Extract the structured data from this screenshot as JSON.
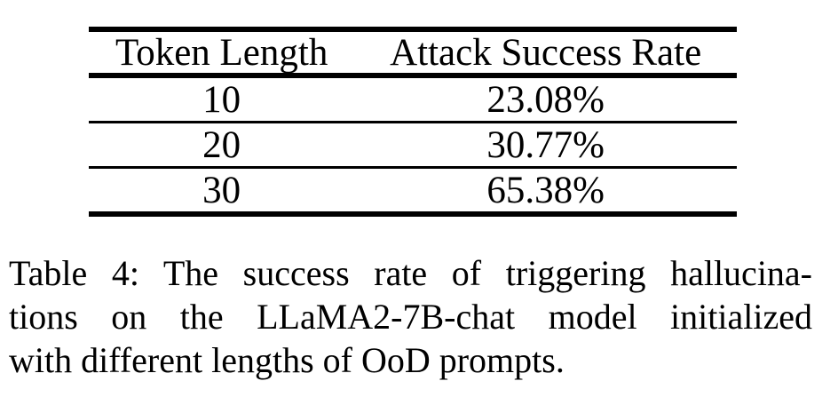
{
  "page": {
    "background": "#ffffff",
    "text_color": "#000000"
  },
  "table": {
    "columns": [
      {
        "label": "Token Length"
      },
      {
        "label": "Attack Success Rate"
      }
    ],
    "rows": [
      {
        "token_length": "10",
        "attack_success_rate": "23.08%"
      },
      {
        "token_length": "20",
        "attack_success_rate": "30.77%"
      },
      {
        "token_length": "30",
        "attack_success_rate": "65.38%"
      }
    ]
  },
  "caption": {
    "lines": [
      "Table 4: The success rate of triggering hallucina-",
      "tions on the LLaMA2-7B-chat model initialized",
      "with different lengths of OoD prompts."
    ],
    "full_text": "Table 4: The success rate of triggering hallucinations on the LLaMA2-7B-chat model initialized with different lengths of OoD prompts."
  },
  "chart_data": {
    "type": "table",
    "title": "Table 4: The success rate of triggering hallucinations on the LLaMA2-7B-chat model initialized with different lengths of OoD prompts.",
    "columns": [
      "Token Length",
      "Attack Success Rate"
    ],
    "rows": [
      [
        "10",
        "23.08%"
      ],
      [
        "20",
        "30.77%"
      ],
      [
        "30",
        "65.38%"
      ]
    ],
    "values_numeric": {
      "token_length": [
        10,
        20,
        30
      ],
      "attack_success_rate_percent": [
        23.08,
        30.77,
        65.38
      ]
    }
  }
}
